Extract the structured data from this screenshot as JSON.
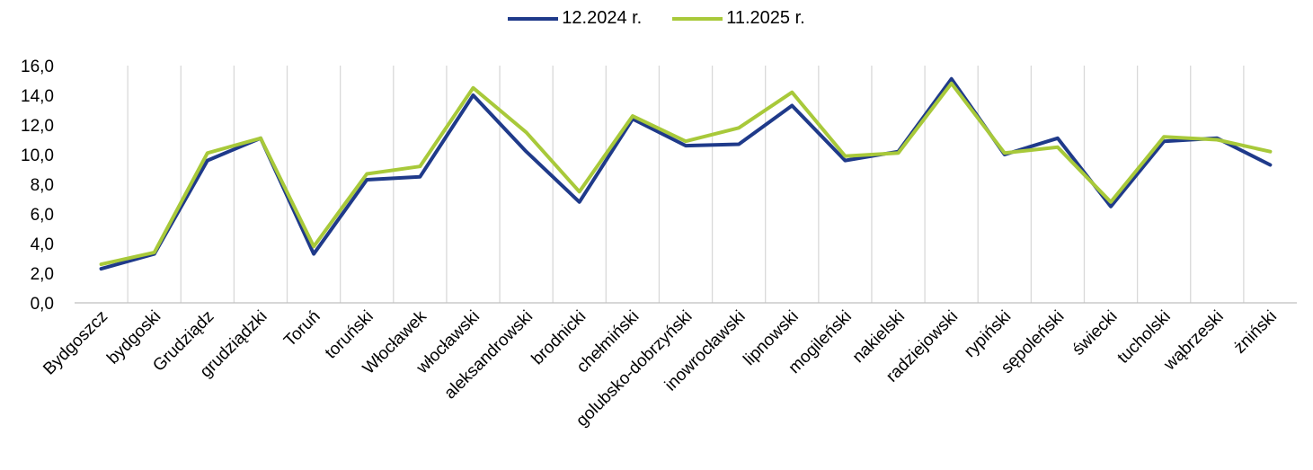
{
  "chart_data": {
    "type": "line",
    "categories": [
      "Bydgoszcz",
      "bydgoski",
      "Grudziądz",
      "grudziądzki",
      "Toruń",
      "toruński",
      "Włocławek",
      "włocławski",
      "aleksandrowski",
      "brodnicki",
      "chełmiński",
      "golubsko-dobrzyński",
      "inowrocławski",
      "lipnowski",
      "mogileński",
      "nakielski",
      "radziejowski",
      "rypiński",
      "sępoleński",
      "świecki",
      "tucholski",
      "wąbrzeski",
      "żniński"
    ],
    "series": [
      {
        "name": "12.2024 r.",
        "color": "#1f3a8a",
        "values": [
          2.3,
          3.3,
          9.6,
          11.1,
          3.3,
          8.3,
          8.5,
          14.0,
          10.2,
          6.8,
          12.4,
          10.6,
          10.7,
          13.3,
          9.6,
          10.2,
          15.1,
          10.0,
          11.1,
          6.5,
          10.9,
          11.1,
          9.3
        ]
      },
      {
        "name": "11.2025 r.",
        "color": "#a8c93a",
        "values": [
          2.6,
          3.4,
          10.1,
          11.1,
          3.8,
          8.7,
          9.2,
          14.5,
          11.5,
          7.5,
          12.6,
          10.9,
          11.8,
          14.2,
          9.9,
          10.1,
          14.8,
          10.1,
          10.5,
          6.8,
          11.2,
          11.0,
          10.2
        ]
      }
    ],
    "ylim": [
      0,
      16
    ],
    "yticks": [
      "0,0",
      "2,0",
      "4,0",
      "6,0",
      "8,0",
      "10,0",
      "12,0",
      "14,0",
      "16,0"
    ],
    "grid": "vertical",
    "legend_position": "top-center"
  }
}
